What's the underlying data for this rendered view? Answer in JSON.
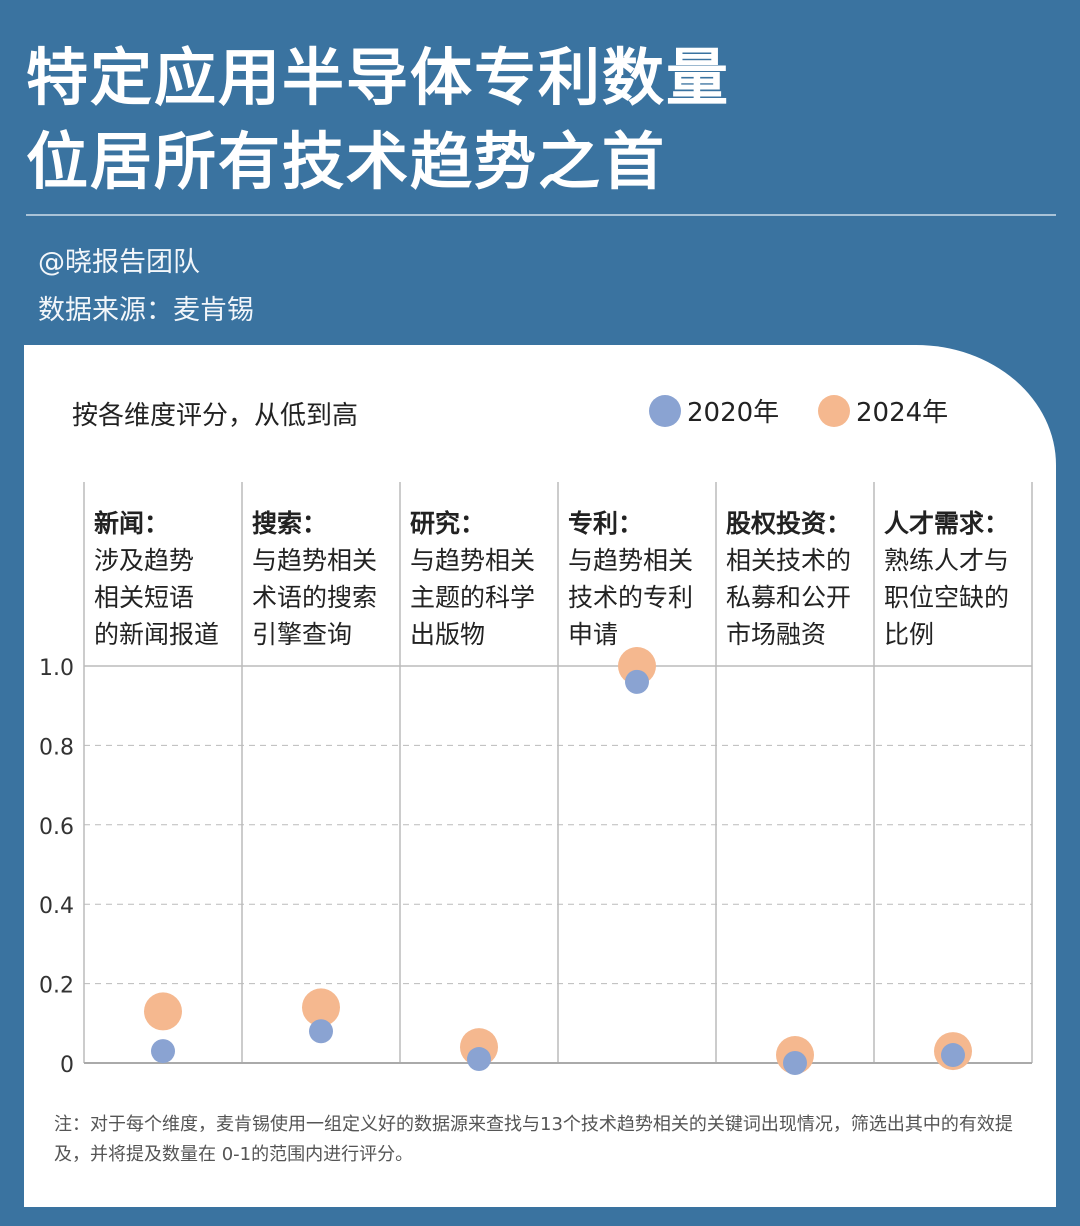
{
  "title": [
    "特定应用半导体专利数量",
    "位居所有技术趋势之首"
  ],
  "author": "@晓报告团队",
  "source": "数据来源：麦肯锡",
  "chart_data": {
    "type": "scatter",
    "title": "按各维度评分，从低到高",
    "categories": [
      {
        "name": "新闻：",
        "desc": [
          "涉及趋势",
          "相关短语",
          "的新闻报道"
        ]
      },
      {
        "name": "搜索：",
        "desc": [
          "与趋势相关",
          "术语的搜索",
          "引擎查询"
        ]
      },
      {
        "name": "研究：",
        "desc": [
          "与趋势相关",
          "主题的科学",
          "出版物"
        ]
      },
      {
        "name": "专利：",
        "desc": [
          "与趋势相关",
          "技术的专利",
          "申请"
        ]
      },
      {
        "name": "股权投资：",
        "desc": [
          "相关技术的",
          "私募和公开",
          "市场融资"
        ]
      },
      {
        "name": "人才需求：",
        "desc": [
          "熟练人才与",
          "职位空缺的",
          "比例"
        ]
      }
    ],
    "series": [
      {
        "name": "2020年",
        "color": "#8aa3d2",
        "values": [
          0.03,
          0.08,
          0.01,
          0.96,
          0.0,
          0.02
        ]
      },
      {
        "name": "2024年",
        "color": "#f5b88f",
        "values": [
          0.13,
          0.14,
          0.04,
          1.0,
          0.02,
          0.03
        ]
      }
    ],
    "ylim": [
      0,
      1.0
    ],
    "yticks": [
      "0",
      "0.2",
      "0.4",
      "0.6",
      "0.8",
      "1.0"
    ],
    "grid": true,
    "legend": "top-right"
  },
  "note": "注：对于每个维度，麦肯锡使用一组定义好的数据源来查找与13个技术趋势相关的关键词出现情况，筛选出其中的有效提及，并将提及数量在 0-1的范围内进行评分。"
}
